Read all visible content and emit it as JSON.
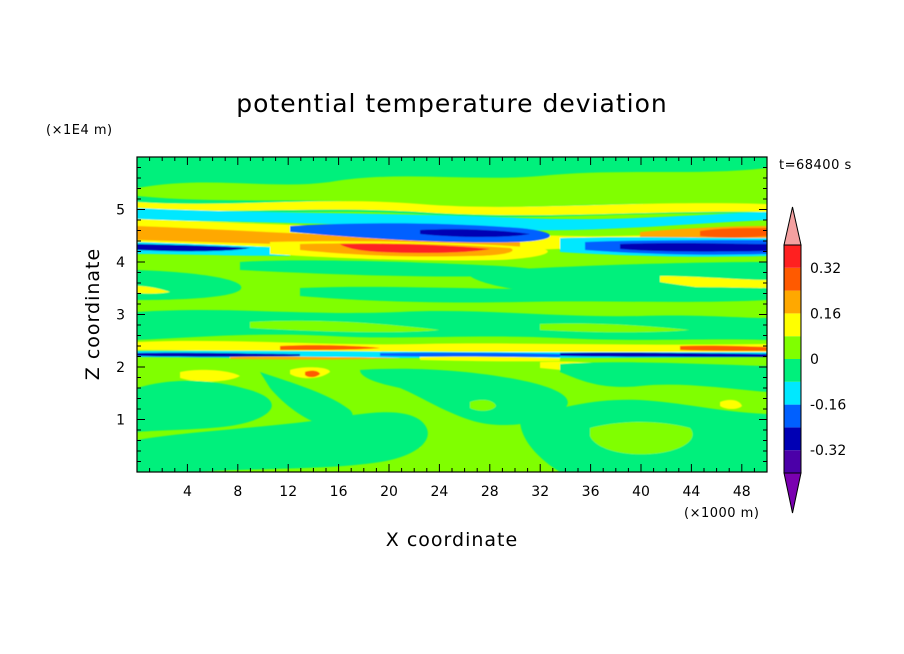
{
  "chart_data": {
    "type": "heatmap",
    "title": "potential temperature deviation",
    "xlabel": "X coordinate",
    "ylabel": "Z coordinate",
    "x_unit": "(×1000 m)",
    "y_unit": "(×1E4 m)",
    "time_label": "t=68400 s",
    "xlim": [
      0,
      50
    ],
    "ylim": [
      0,
      6
    ],
    "x_ticks": [
      "4",
      "8",
      "12",
      "16",
      "20",
      "24",
      "28",
      "32",
      "36",
      "40",
      "44",
      "48"
    ],
    "x_tick_values": [
      4,
      8,
      12,
      16,
      20,
      24,
      28,
      32,
      36,
      40,
      44,
      48
    ],
    "y_ticks": [
      "1",
      "2",
      "3",
      "4",
      "5"
    ],
    "y_tick_values": [
      1,
      2,
      3,
      4,
      5
    ],
    "colorbar": {
      "levels": [
        {
          "color": "#7a00b0",
          "range": [
            -0.48,
            -0.4
          ]
        },
        {
          "color": "#4b00a8",
          "range": [
            -0.4,
            -0.32
          ]
        },
        {
          "color": "#0000b4",
          "range": [
            -0.32,
            -0.24
          ]
        },
        {
          "color": "#0060ff",
          "range": [
            -0.24,
            -0.16
          ]
        },
        {
          "color": "#00e8ff",
          "range": [
            -0.16,
            -0.08
          ]
        },
        {
          "color": "#00f07c",
          "range": [
            -0.08,
            0.0
          ]
        },
        {
          "color": "#80ff00",
          "range": [
            0.0,
            0.08
          ]
        },
        {
          "color": "#ffff00",
          "range": [
            0.08,
            0.16
          ]
        },
        {
          "color": "#ffa800",
          "range": [
            0.16,
            0.24
          ]
        },
        {
          "color": "#ff5a00",
          "range": [
            0.24,
            0.32
          ]
        },
        {
          "color": "#ff2020",
          "range": [
            0.32,
            0.4
          ]
        },
        {
          "color": "#f4a0a0",
          "range": [
            0.4,
            0.48
          ]
        }
      ],
      "labels": [
        "0.32",
        "0.16",
        "0",
        "-0.16",
        "-0.32"
      ],
      "label_values": [
        0.32,
        0.16,
        0.0,
        -0.16,
        -0.32
      ]
    }
  }
}
